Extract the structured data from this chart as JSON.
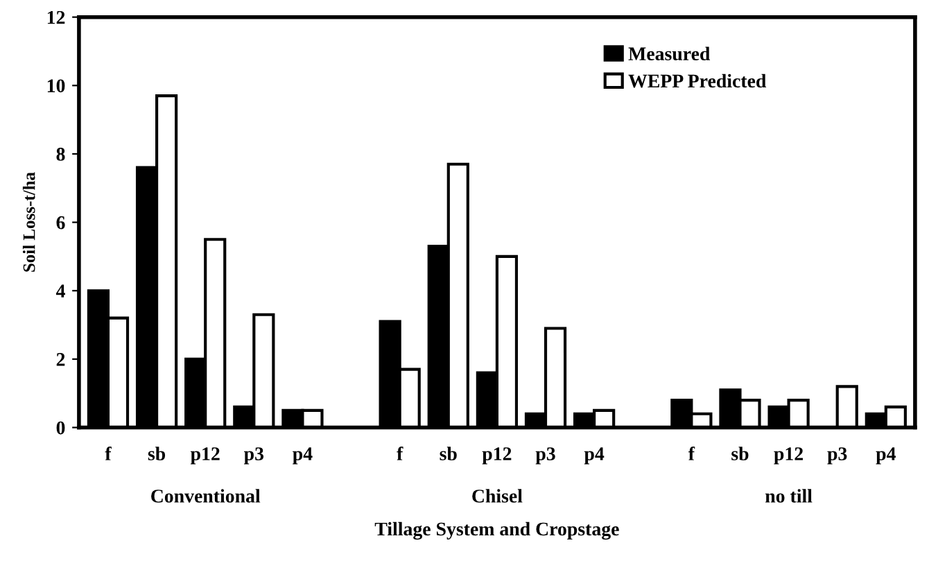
{
  "chart_data": {
    "type": "bar",
    "xlabel": "Tillage System and Cropstage",
    "ylabel": "Soil Loss-t/ha",
    "categories": [
      "f",
      "sb",
      "p12",
      "p3",
      "p4",
      null,
      "f",
      "sb",
      "p12",
      "p3",
      "p4",
      null,
      "f",
      "sb",
      "p12",
      "p3",
      "p4"
    ],
    "series": [
      {
        "name": "Measured",
        "color": "#000000",
        "values": [
          4.0,
          7.6,
          2.0,
          0.6,
          0.5,
          null,
          3.1,
          5.3,
          1.6,
          0.4,
          0.4,
          null,
          0.8,
          1.1,
          0.6,
          0.0,
          0.4
        ]
      },
      {
        "name": "WEPP Predicted",
        "color": "#ffffff",
        "values": [
          3.2,
          9.7,
          5.5,
          3.3,
          0.5,
          null,
          1.7,
          7.7,
          5.0,
          2.9,
          0.5,
          null,
          0.4,
          0.8,
          0.8,
          1.2,
          0.6
        ]
      }
    ],
    "annotations": [
      "Conventional",
      "Chisel",
      "no till"
    ],
    "ylim": [
      0,
      12
    ],
    "yticks": [
      0,
      2,
      4,
      6,
      8,
      10,
      12
    ],
    "grid": false,
    "legend": "top right"
  }
}
